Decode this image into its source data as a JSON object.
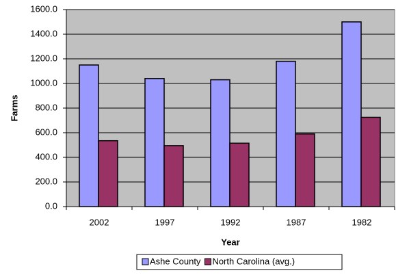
{
  "chart_data": {
    "type": "bar",
    "categories": [
      "2002",
      "1997",
      "1992",
      "1987",
      "1982"
    ],
    "series": [
      {
        "name": "Ashe County",
        "color": "#9999ff",
        "values": [
          1150,
          1040,
          1030,
          1180,
          1500
        ]
      },
      {
        "name": "North Carolina (avg.)",
        "color": "#993366",
        "values": [
          535,
          495,
          515,
          590,
          725
        ]
      }
    ],
    "ylim": [
      0,
      1600
    ],
    "yticks": [
      {
        "value": 0,
        "label": "0.0"
      },
      {
        "value": 200,
        "label": "200.0"
      },
      {
        "value": 400,
        "label": "400.0"
      },
      {
        "value": 600,
        "label": "600.0"
      },
      {
        "value": 800,
        "label": "800.0"
      },
      {
        "value": 1000,
        "label": "1000.0"
      },
      {
        "value": 1200,
        "label": "1200.0"
      },
      {
        "value": 1400,
        "label": "1400.0"
      },
      {
        "value": 1600,
        "label": "1600.0"
      }
    ],
    "y_label": "Farms",
    "x_label": "Year",
    "grid": true,
    "legend": "bottom"
  }
}
